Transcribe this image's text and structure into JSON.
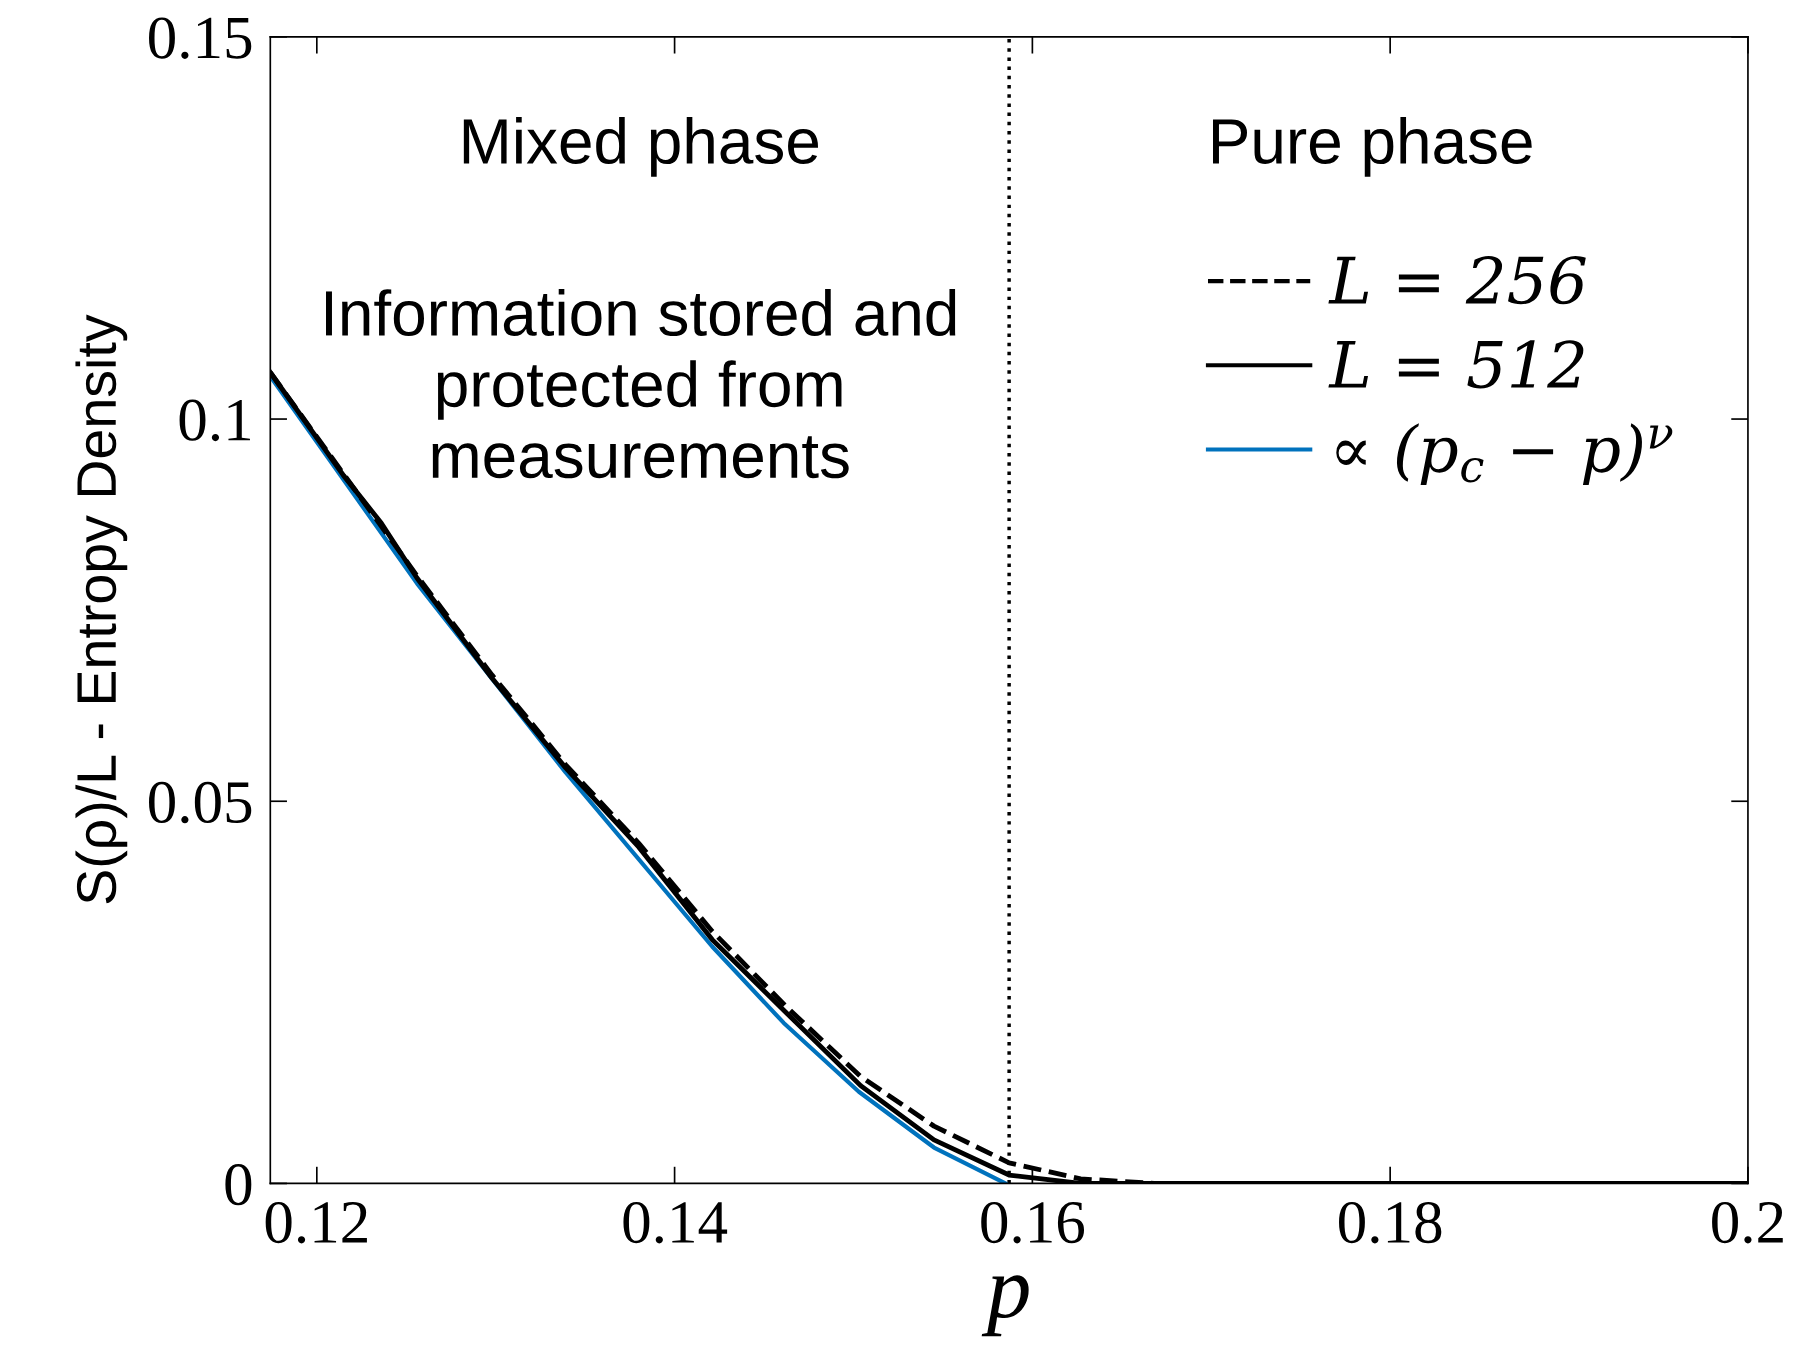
{
  "chart_data": {
    "type": "line",
    "xlabel": "p",
    "ylabel": "S(ρ)/L - Entropy Density",
    "xlim": [
      0.1174,
      0.2
    ],
    "ylim": [
      0,
      0.15
    ],
    "xticks": [
      0.12,
      0.14,
      0.16,
      0.18,
      0.2
    ],
    "yticks": [
      0,
      0.05,
      0.1,
      0.15
    ],
    "grid": false,
    "legend": "top right",
    "marker": "none",
    "series": [
      {
        "name": "L = 256",
        "color": "#000000",
        "line_style": "dashed",
        "x": [
          0.1174,
          0.1215,
          0.1256,
          0.1298,
          0.1339,
          0.138,
          0.1421,
          0.1463,
          0.1504,
          0.1545,
          0.1587,
          0.1627,
          0.1668,
          0.17,
          0.2
        ],
        "values": [
          0.1061,
          0.0928,
          0.0795,
          0.0665,
          0.0548,
          0.0445,
          0.033,
          0.023,
          0.014,
          0.0075,
          0.0027,
          0.0006,
          0,
          0,
          0
        ]
      },
      {
        "name": "L = 512",
        "color": "#000000",
        "line_style": "solid",
        "x": [
          0.1174,
          0.1215,
          0.1236,
          0.1256,
          0.1298,
          0.1339,
          0.138,
          0.1421,
          0.1463,
          0.1504,
          0.1545,
          0.1587,
          0.1627,
          0.1668,
          0.2
        ],
        "values": [
          0.1061,
          0.0926,
          0.0864,
          0.0792,
          0.0661,
          0.0544,
          0.044,
          0.0319,
          0.0222,
          0.0128,
          0.0057,
          0.0011,
          0,
          0,
          0
        ]
      },
      {
        "name": "∝ (p$_{c}$ − p)$^{ν}$",
        "color": "#0072bd",
        "line_style": "solid",
        "x": [
          0.1174,
          0.1256,
          0.1339,
          0.1421,
          0.1461,
          0.1503,
          0.1545,
          0.1585
        ],
        "values": [
          0.1056,
          0.0785,
          0.0538,
          0.031,
          0.021,
          0.012,
          0.0047,
          0
        ]
      }
    ],
    "ref_lines": [
      {
        "axis": "x",
        "value": 0.1587,
        "color": "#000000",
        "line_style": "dotted"
      }
    ],
    "annotations": [
      "Mixed phase",
      "Information stored and\nprotected from\nmeasurements",
      "Pure phase"
    ]
  }
}
